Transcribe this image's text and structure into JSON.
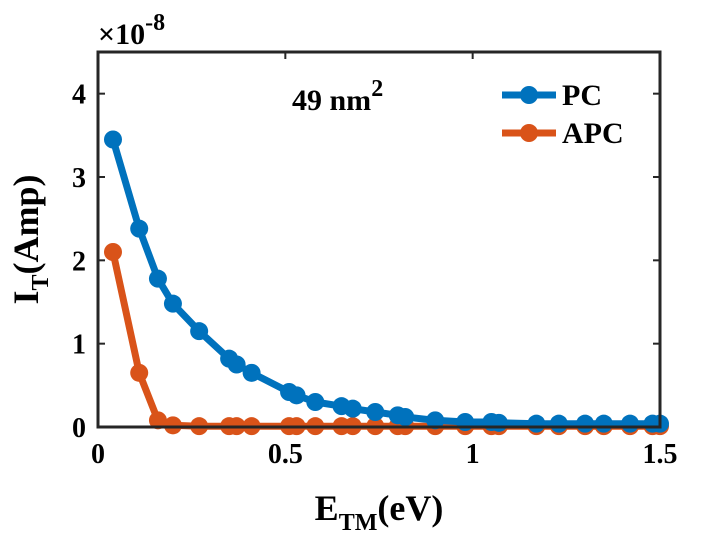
{
  "chart_data": {
    "type": "line",
    "title": "",
    "xlabel": {
      "base": "E",
      "sub": "TM",
      "rest": "(eV)"
    },
    "ylabel": {
      "base": "I",
      "sub": "T",
      "rest": "(Amp)"
    },
    "xlim": [
      0,
      1.5
    ],
    "ylim": [
      0,
      4.5
    ],
    "xticks": [
      0,
      0.5,
      1,
      1.5
    ],
    "xtick_labels": [
      "0",
      "0.5",
      "1",
      "1.5"
    ],
    "yticks": [
      0,
      1,
      2,
      3,
      4
    ],
    "ytick_labels": [
      "0",
      "1",
      "2",
      "3",
      "4"
    ],
    "y_multiplier": {
      "base": "×10",
      "exp": "-8"
    },
    "annotation": {
      "text": "49 nm",
      "sup": "2"
    },
    "legend_position": "top-right",
    "series": [
      {
        "name": "PC",
        "color": "#0072BD",
        "x": [
          0.04,
          0.11,
          0.16,
          0.2,
          0.27,
          0.35,
          0.37,
          0.41,
          0.51,
          0.53,
          0.58,
          0.65,
          0.68,
          0.74,
          0.8,
          0.82,
          0.9,
          0.98,
          1.05,
          1.07,
          1.17,
          1.23,
          1.3,
          1.35,
          1.42,
          1.48,
          1.5
        ],
        "values": [
          3.45,
          2.38,
          1.78,
          1.48,
          1.15,
          0.82,
          0.75,
          0.65,
          0.42,
          0.38,
          0.3,
          0.25,
          0.22,
          0.18,
          0.14,
          0.12,
          0.08,
          0.06,
          0.06,
          0.05,
          0.04,
          0.04,
          0.04,
          0.04,
          0.04,
          0.04,
          0.04
        ]
      },
      {
        "name": "APC",
        "color": "#D95319",
        "x": [
          0.04,
          0.11,
          0.16,
          0.2,
          0.27,
          0.35,
          0.37,
          0.41,
          0.51,
          0.53,
          0.58,
          0.65,
          0.68,
          0.74,
          0.8,
          0.82,
          0.9,
          0.98,
          1.05,
          1.07,
          1.17,
          1.23,
          1.3,
          1.35,
          1.42,
          1.48,
          1.5
        ],
        "values": [
          2.1,
          0.65,
          0.08,
          0.02,
          0.01,
          0.01,
          0.01,
          0.01,
          0.01,
          0.01,
          0.01,
          0.01,
          0.01,
          0.01,
          0.01,
          0.01,
          0.01,
          0.01,
          0.01,
          0.01,
          0.01,
          0.01,
          0.01,
          0.01,
          0.01,
          0.01,
          0.01
        ]
      }
    ]
  }
}
